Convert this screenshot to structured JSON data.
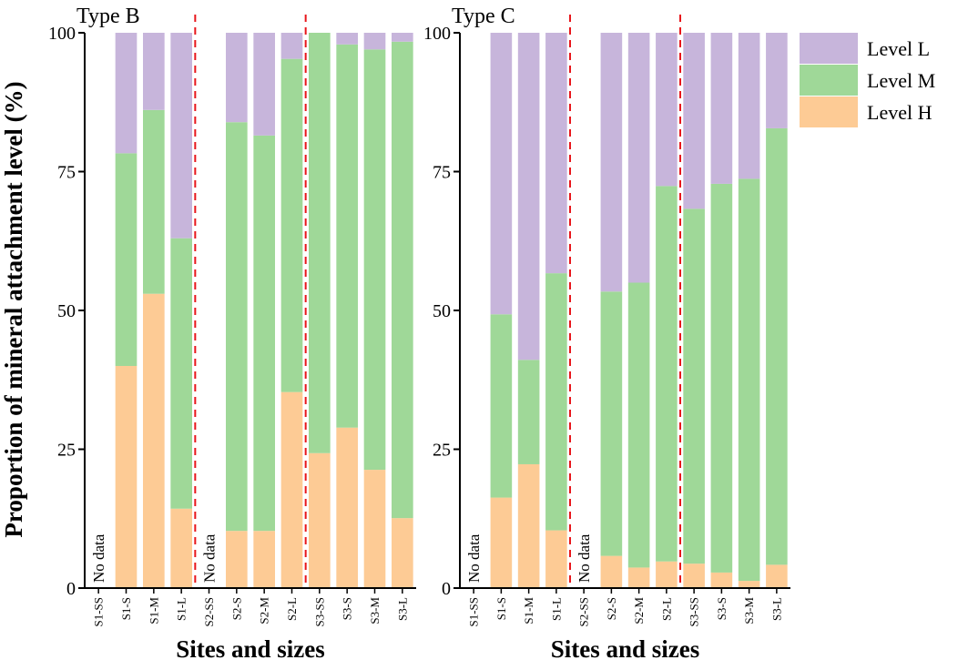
{
  "chart_data": [
    {
      "type": "bar",
      "stacked": true,
      "title": "Type B",
      "xlabel": "Sites and sizes",
      "ylabel": "Proportion of mineral attachment level (%)",
      "ylim": [
        0,
        100
      ],
      "yticks": [
        0,
        25,
        50,
        75,
        100
      ],
      "categories": [
        "S1-SS",
        "S1-S",
        "S1-M",
        "S1-L",
        "S2-SS",
        "S2-S",
        "S2-M",
        "S2-L",
        "S3-SS",
        "S3-S",
        "S3-M",
        "S3-L"
      ],
      "series": [
        {
          "name": "Level H",
          "color": "#fdcb95",
          "values": [
            null,
            40,
            53,
            14.3,
            null,
            10.3,
            10.3,
            35.3,
            24.3,
            28.9,
            21.3,
            12.6
          ]
        },
        {
          "name": "Level M",
          "color": "#9fd898",
          "values": [
            null,
            38.3,
            33.1,
            48.7,
            null,
            73.6,
            71.2,
            60.0,
            75.7,
            69.0,
            75.7,
            85.8
          ]
        },
        {
          "name": "Level L",
          "color": "#c7b5db",
          "values": [
            null,
            21.7,
            13.9,
            37.0,
            null,
            16.1,
            18.5,
            4.7,
            0,
            2.1,
            3.0,
            1.6
          ]
        }
      ],
      "no_data_label": "No data",
      "no_data_categories": [
        "S1-SS",
        "S2-SS"
      ],
      "separators_after": [
        "S1-L",
        "S2-L"
      ]
    },
    {
      "type": "bar",
      "stacked": true,
      "title": "Type C",
      "xlabel": "Sites and sizes",
      "ylim": [
        0,
        100
      ],
      "yticks": [
        0,
        25,
        50,
        75,
        100
      ],
      "categories": [
        "S1-SS",
        "S1-S",
        "S1-M",
        "S1-L",
        "S2-SS",
        "S2-S",
        "S2-M",
        "S2-L",
        "S3-SS",
        "S3-S",
        "S3-M",
        "S3-L"
      ],
      "series": [
        {
          "name": "Level H",
          "color": "#fdcb95",
          "values": [
            null,
            16.3,
            22.3,
            10.4,
            null,
            5.8,
            3.7,
            4.8,
            4.4,
            2.8,
            1.3,
            4.2
          ]
        },
        {
          "name": "Level M",
          "color": "#9fd898",
          "values": [
            null,
            33.0,
            18.8,
            46.3,
            null,
            47.6,
            51.3,
            67.6,
            63.9,
            70.0,
            72.4,
            78.6
          ]
        },
        {
          "name": "Level L",
          "color": "#c7b5db",
          "values": [
            null,
            50.7,
            58.9,
            43.3,
            null,
            46.6,
            45.0,
            27.6,
            31.7,
            27.2,
            26.3,
            17.2
          ]
        }
      ],
      "no_data_label": "No data",
      "no_data_categories": [
        "S1-SS",
        "S2-SS"
      ],
      "separators_after": [
        "S1-L",
        "S2-L"
      ]
    }
  ],
  "legend": {
    "position": "top-right",
    "items": [
      {
        "label": "Level L",
        "color": "#c7b5db"
      },
      {
        "label": "Level M",
        "color": "#9fd898"
      },
      {
        "label": "Level H",
        "color": "#fdcb95"
      }
    ]
  },
  "colors": {
    "separator": "#e8161b",
    "axis": "#000000"
  }
}
